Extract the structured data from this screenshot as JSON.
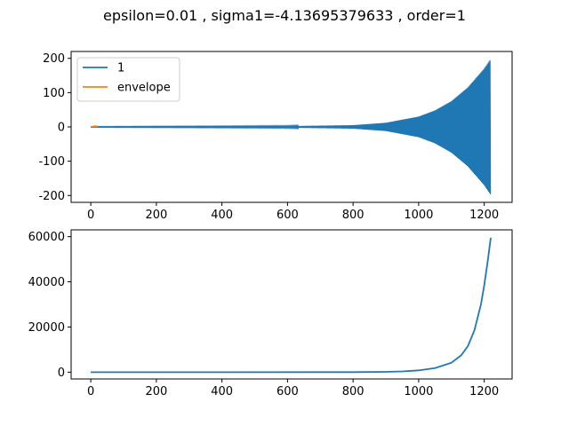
{
  "figure": {
    "title": "epsilon=0.01 , sigma1=-4.13695379633 , order=1"
  },
  "colors": {
    "series_blue": "#1f77b4",
    "series_orange": "#ff7f0e"
  },
  "chart_data": [
    {
      "type": "line",
      "xlim": [
        -60,
        1285
      ],
      "ylim": [
        -220,
        220
      ],
      "xticks": [
        0,
        200,
        400,
        600,
        800,
        1000,
        1200
      ],
      "yticks": [
        -200,
        -100,
        0,
        100,
        200
      ],
      "legend_placement": "top-left",
      "grid": false,
      "series": [
        {
          "name": "1",
          "kind": "oscillation",
          "envelope_points": [
            [
              0,
              0.8
            ],
            [
              200,
              1.2
            ],
            [
              400,
              1.5
            ],
            [
              600,
              2
            ],
            [
              800,
              5
            ],
            [
              900,
              12
            ],
            [
              1000,
              30
            ],
            [
              1050,
              48
            ],
            [
              1100,
              75
            ],
            [
              1150,
              115
            ],
            [
              1200,
              170
            ],
            [
              1220,
              198
            ]
          ],
          "x_range": [
            0,
            1220
          ]
        },
        {
          "name": "envelope",
          "kind": "short-line",
          "points": [
            [
              2,
              0.5
            ],
            [
              8,
              1.5
            ],
            [
              14,
              2.5
            ],
            [
              20,
              1.2
            ]
          ]
        }
      ]
    },
    {
      "type": "line",
      "xlim": [
        -60,
        1285
      ],
      "ylim": [
        -3000,
        63000
      ],
      "xticks": [
        0,
        200,
        400,
        600,
        800,
        1000,
        1200
      ],
      "yticks": [
        0,
        20000,
        40000,
        60000
      ],
      "grid": false,
      "series": [
        {
          "points": [
            [
              0,
              0
            ],
            [
              400,
              0
            ],
            [
              800,
              30
            ],
            [
              900,
              150
            ],
            [
              950,
              350
            ],
            [
              1000,
              800
            ],
            [
              1050,
              1800
            ],
            [
              1100,
              4200
            ],
            [
              1130,
              7500
            ],
            [
              1150,
              11500
            ],
            [
              1170,
              18500
            ],
            [
              1190,
              30000
            ],
            [
              1200,
              38500
            ],
            [
              1210,
              48500
            ],
            [
              1220,
              59500
            ]
          ]
        }
      ]
    }
  ]
}
